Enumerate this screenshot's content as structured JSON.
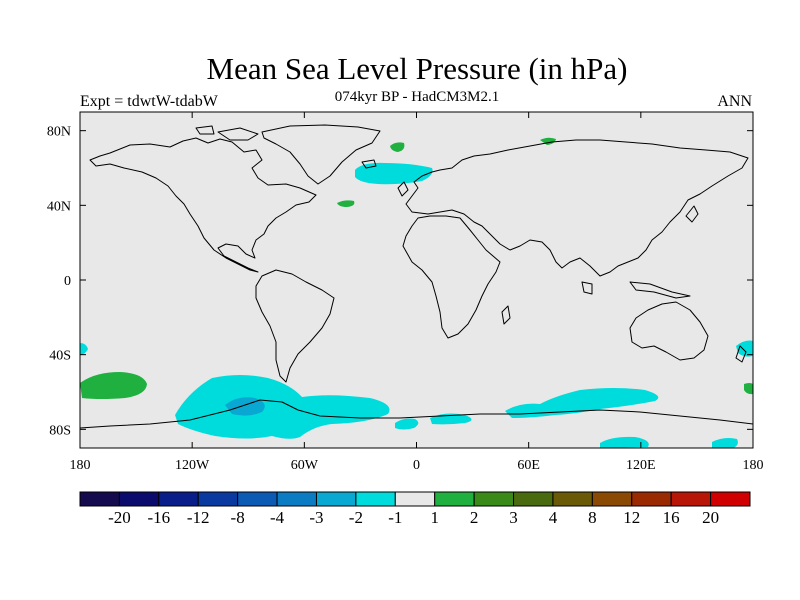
{
  "figure": {
    "title": "Mean Sea Level Pressure (in hPa)",
    "subtitle": "074kyr BP - HadCM3M2.1",
    "left_label": "Expt = tdwtW-tdabW",
    "right_label": "ANN"
  },
  "map_axes": {
    "x_ticks": [
      {
        "value": -180,
        "label": "180"
      },
      {
        "value": -120,
        "label": "120W"
      },
      {
        "value": -60,
        "label": "60W"
      },
      {
        "value": 0,
        "label": "0"
      },
      {
        "value": 60,
        "label": "60E"
      },
      {
        "value": 120,
        "label": "120E"
      },
      {
        "value": 180,
        "label": "180"
      }
    ],
    "y_ticks": [
      {
        "value": 80,
        "label": "80N"
      },
      {
        "value": 40,
        "label": "40N"
      },
      {
        "value": 0,
        "label": "0"
      },
      {
        "value": -40,
        "label": "40S"
      },
      {
        "value": -80,
        "label": "80S"
      }
    ],
    "lon_range": [
      -180,
      180
    ],
    "lat_range": [
      -90,
      90
    ],
    "background_color": "#e8e8e8"
  },
  "colorbar": {
    "colors": [
      "#140a4e",
      "#0b0b6e",
      "#0a1e8a",
      "#0a3aa0",
      "#0b5ab4",
      "#0b7cc4",
      "#08a8d2",
      "#00dcdc",
      "#e8e8e8",
      "#20b040",
      "#3a8a1a",
      "#4a6a10",
      "#6a5a08",
      "#8a4a04",
      "#9a2a02",
      "#b81606",
      "#d00000"
    ],
    "labels": [
      "-20",
      "-16",
      "-12",
      "-8",
      "-4",
      "-3",
      "-2",
      "-1",
      "1",
      "2",
      "3",
      "4",
      "8",
      "12",
      "16",
      "20"
    ]
  }
}
